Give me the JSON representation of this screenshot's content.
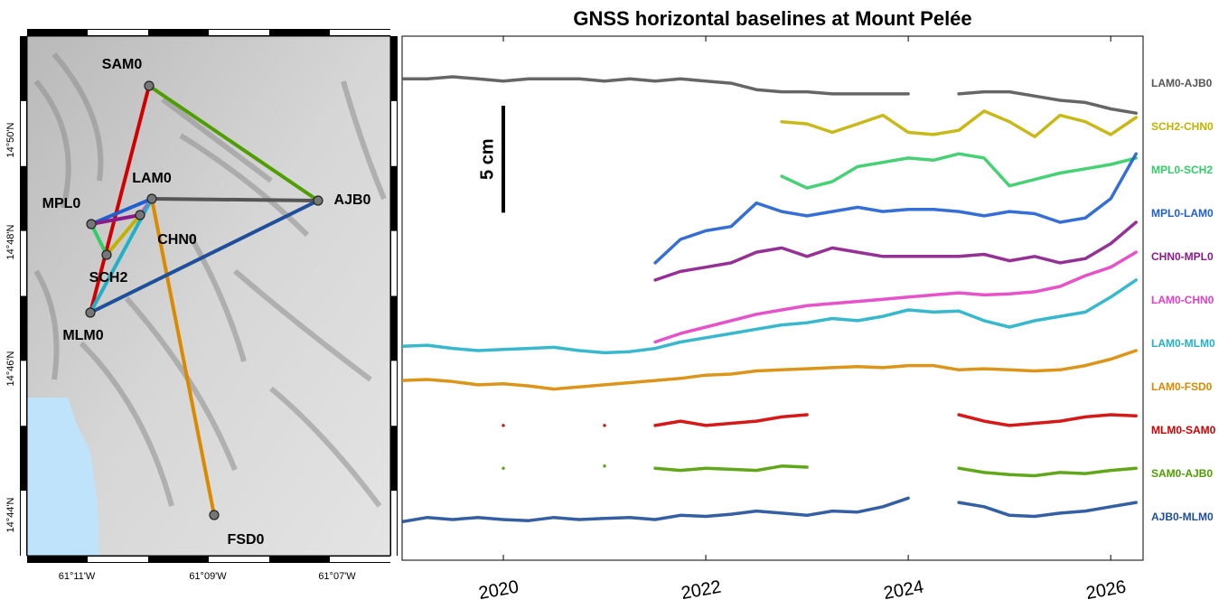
{
  "map": {
    "stations": [
      "SAM0",
      "LAM0",
      "AJB0",
      "MPL0",
      "CHN0",
      "SCH2",
      "MLM0",
      "FSD0"
    ],
    "xtick_labels": [
      "61°11'W",
      "61°09'W",
      "61°07'W"
    ],
    "ytick_labels": [
      "14°50'N",
      "14°48'N",
      "14°46'N",
      "14°44'N"
    ]
  },
  "chart_data": {
    "type": "line",
    "title": "GNSS horizontal baselines at Mount Pelée",
    "x": [
      2019,
      2019.25,
      2019.5,
      2019.75,
      2020,
      2020.25,
      2020.5,
      2020.75,
      2021,
      2021.25,
      2021.5,
      2021.75,
      2022,
      2022.25,
      2022.5,
      2022.75,
      2023,
      2023.25,
      2023.5,
      2023.75,
      2024,
      2024.25,
      2024.5,
      2024.75,
      2025,
      2025.25,
      2025.5,
      2025.75,
      2026,
      2026.25
    ],
    "xlim": [
      2019.0,
      2026.32
    ],
    "xticks": [
      2020,
      2022,
      2024,
      2026
    ],
    "ylim": [
      0,
      24.5
    ],
    "scale_bar": {
      "value": 5,
      "label": "5 cm"
    },
    "series": [
      {
        "name": "LAM0-AJB0",
        "color": "#555555",
        "values": [
          22.5,
          22.5,
          22.6,
          22.5,
          22.4,
          22.5,
          22.5,
          22.5,
          22.4,
          22.5,
          22.4,
          22.5,
          22.4,
          22.3,
          22.0,
          21.9,
          21.9,
          21.8,
          21.8,
          21.8,
          21.8,
          null,
          21.8,
          21.9,
          21.9,
          21.7,
          21.5,
          21.4,
          21.1,
          20.9
        ]
      },
      {
        "name": "SCH2-CHN0",
        "color": "#c2b100",
        "values": [
          null,
          null,
          null,
          null,
          null,
          null,
          null,
          null,
          null,
          null,
          null,
          null,
          null,
          null,
          null,
          20.5,
          20.4,
          20.0,
          20.4,
          20.8,
          20.0,
          19.9,
          20.1,
          21.0,
          20.5,
          19.8,
          20.8,
          20.5,
          19.9,
          20.7
        ]
      },
      {
        "name": "MPL0-SCH2",
        "color": "#33cc66",
        "values": [
          null,
          null,
          null,
          null,
          null,
          null,
          null,
          null,
          null,
          null,
          null,
          null,
          null,
          null,
          null,
          17.95,
          17.4,
          17.7,
          18.4,
          18.6,
          18.8,
          18.7,
          19.0,
          18.8,
          17.5,
          17.8,
          18.1,
          18.3,
          18.5,
          18.8
        ]
      },
      {
        "name": "MPL0-LAM0",
        "color": "#1f5fd0",
        "values": [
          null,
          null,
          null,
          null,
          null,
          null,
          null,
          null,
          null,
          null,
          13.9,
          15.0,
          15.4,
          15.6,
          16.7,
          16.3,
          16.1,
          16.3,
          16.5,
          16.3,
          16.4,
          16.4,
          16.3,
          16.1,
          16.3,
          16.2,
          15.8,
          16.0,
          16.9,
          19.0
        ]
      },
      {
        "name": "CHN0-MPL0",
        "color": "#8a1a8a",
        "values": [
          null,
          null,
          null,
          null,
          null,
          null,
          null,
          null,
          null,
          null,
          13.1,
          13.5,
          13.7,
          13.9,
          14.4,
          14.6,
          14.2,
          14.6,
          14.4,
          14.2,
          14.2,
          14.2,
          14.2,
          14.3,
          14.0,
          14.2,
          13.9,
          14.1,
          14.8,
          15.8
        ]
      },
      {
        "name": "LAM0-CHN0",
        "color": "#e33fc4",
        "values": [
          null,
          null,
          null,
          null,
          null,
          null,
          null,
          null,
          null,
          null,
          10.2,
          10.6,
          10.9,
          11.2,
          11.5,
          11.7,
          11.9,
          12.0,
          12.1,
          12.2,
          12.3,
          12.4,
          12.5,
          12.4,
          12.45,
          12.55,
          12.8,
          13.3,
          13.7,
          14.4
        ]
      },
      {
        "name": "LAM0-MLM0",
        "color": "#22b0c8",
        "values": [
          10.0,
          10.05,
          9.9,
          9.8,
          9.85,
          9.9,
          9.95,
          9.8,
          9.7,
          9.75,
          9.9,
          10.2,
          10.4,
          10.6,
          10.8,
          11.0,
          11.1,
          11.3,
          11.2,
          11.4,
          11.7,
          11.6,
          11.65,
          11.2,
          10.9,
          11.2,
          11.4,
          11.6,
          12.3,
          13.1
        ]
      },
      {
        "name": "LAM0-FSD0",
        "color": "#d98a00",
        "values": [
          8.4,
          8.45,
          8.35,
          8.2,
          8.25,
          8.15,
          8.0,
          8.1,
          8.2,
          8.3,
          8.4,
          8.5,
          8.65,
          8.7,
          8.85,
          8.9,
          8.95,
          9.0,
          9.05,
          9.0,
          9.1,
          9.1,
          8.9,
          8.95,
          8.9,
          8.85,
          8.9,
          9.1,
          9.4,
          9.8
        ]
      },
      {
        "name": "MLM0-SAM0",
        "color": "#d00000",
        "values": [
          null,
          null,
          null,
          null,
          6.3,
          null,
          null,
          null,
          6.3,
          null,
          6.3,
          6.5,
          6.3,
          6.4,
          6.5,
          6.7,
          6.8,
          null,
          null,
          null,
          null,
          null,
          6.8,
          6.5,
          6.3,
          6.4,
          6.5,
          6.7,
          6.8,
          6.75
        ]
      },
      {
        "name": "SAM0-AJB0",
        "color": "#4f9e00",
        "values": [
          null,
          null,
          null,
          null,
          4.3,
          null,
          null,
          null,
          4.4,
          null,
          4.3,
          4.2,
          4.3,
          4.25,
          4.2,
          4.4,
          4.35,
          null,
          null,
          null,
          null,
          null,
          4.3,
          4.1,
          4.0,
          3.95,
          4.1,
          4.05,
          4.2,
          4.3
        ]
      },
      {
        "name": "AJB0-MLM0",
        "color": "#1f4e9a",
        "values": [
          1.8,
          2.0,
          1.9,
          2.0,
          1.9,
          1.85,
          2.0,
          1.9,
          1.95,
          2.0,
          1.9,
          2.1,
          2.05,
          2.15,
          2.3,
          2.2,
          2.1,
          2.3,
          2.25,
          2.5,
          2.9,
          null,
          2.7,
          2.5,
          2.1,
          2.05,
          2.2,
          2.3,
          2.5,
          2.7
        ]
      }
    ]
  }
}
